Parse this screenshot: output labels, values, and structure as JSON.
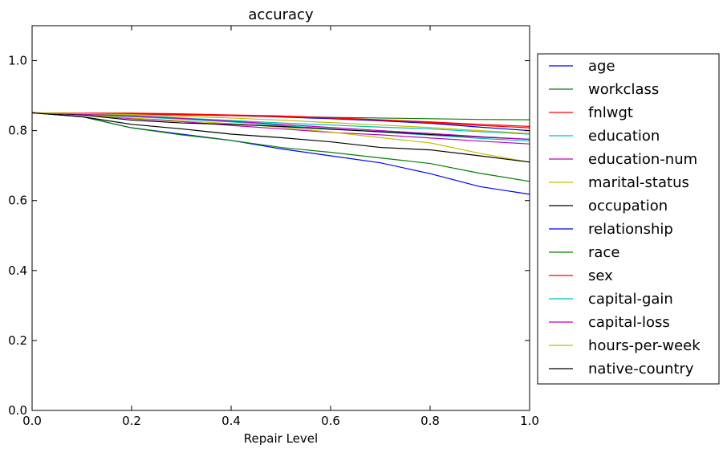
{
  "chart_data": {
    "type": "line",
    "title": "accuracy",
    "xlabel": "Repair Level",
    "ylabel": "",
    "xlim": [
      0.0,
      1.0
    ],
    "ylim": [
      0.0,
      1.1
    ],
    "xticks": [
      "0.0",
      "0.2",
      "0.4",
      "0.6",
      "0.8",
      "1.0"
    ],
    "yticks": [
      "0.0",
      "0.2",
      "0.4",
      "0.6",
      "0.8",
      "1.0"
    ],
    "grid": false,
    "legend_position": "right, outside plot",
    "x": [
      0.0,
      0.1,
      0.2,
      0.3,
      0.4,
      0.5,
      0.6,
      0.7,
      0.8,
      0.9,
      1.0
    ],
    "series": [
      {
        "name": "age",
        "color": "#0000ff",
        "values": [
          0.851,
          0.849,
          0.847,
          0.845,
          0.843,
          0.839,
          0.834,
          0.828,
          0.821,
          0.81,
          0.8
        ]
      },
      {
        "name": "workclass",
        "color": "#008000",
        "values": [
          0.851,
          0.849,
          0.847,
          0.845,
          0.843,
          0.841,
          0.838,
          0.836,
          0.834,
          0.832,
          0.831
        ]
      },
      {
        "name": "fnlwgt",
        "color": "#ff0000",
        "values": [
          0.851,
          0.849,
          0.848,
          0.846,
          0.843,
          0.84,
          0.836,
          0.83,
          0.823,
          0.815,
          0.808
        ]
      },
      {
        "name": "education",
        "color": "#00bfbf",
        "values": [
          0.851,
          0.847,
          0.84,
          0.833,
          0.825,
          0.815,
          0.805,
          0.796,
          0.787,
          0.778,
          0.77
        ]
      },
      {
        "name": "education-num",
        "color": "#bf00bf",
        "values": [
          0.851,
          0.846,
          0.834,
          0.826,
          0.815,
          0.805,
          0.795,
          0.788,
          0.779,
          0.77,
          0.762
        ]
      },
      {
        "name": "marital-status",
        "color": "#bfbf00",
        "values": [
          0.851,
          0.846,
          0.836,
          0.828,
          0.82,
          0.81,
          0.796,
          0.78,
          0.765,
          0.735,
          0.71
        ]
      },
      {
        "name": "occupation",
        "color": "#000000",
        "values": [
          0.851,
          0.845,
          0.83,
          0.822,
          0.818,
          0.812,
          0.804,
          0.797,
          0.789,
          0.782,
          0.775
        ]
      },
      {
        "name": "relationship",
        "color": "#0000ff",
        "values": [
          0.851,
          0.84,
          0.808,
          0.79,
          0.772,
          0.748,
          0.728,
          0.708,
          0.677,
          0.64,
          0.618
        ]
      },
      {
        "name": "race",
        "color": "#008000",
        "values": [
          0.851,
          0.84,
          0.808,
          0.788,
          0.772,
          0.752,
          0.738,
          0.722,
          0.706,
          0.678,
          0.655
        ]
      },
      {
        "name": "sex",
        "color": "#ff0000",
        "values": [
          0.851,
          0.85,
          0.85,
          0.848,
          0.845,
          0.842,
          0.837,
          0.831,
          0.825,
          0.818,
          0.812
        ]
      },
      {
        "name": "capital-gain",
        "color": "#00bfbf",
        "values": [
          0.851,
          0.848,
          0.843,
          0.836,
          0.829,
          0.822,
          0.816,
          0.81,
          0.805,
          0.797,
          0.79
        ]
      },
      {
        "name": "capital-loss",
        "color": "#bf00bf",
        "values": [
          0.851,
          0.847,
          0.842,
          0.835,
          0.827,
          0.818,
          0.809,
          0.8,
          0.792,
          0.783,
          0.775
        ]
      },
      {
        "name": "hours-per-week",
        "color": "#bfbf00",
        "values": [
          0.851,
          0.849,
          0.846,
          0.841,
          0.836,
          0.83,
          0.823,
          0.816,
          0.809,
          0.8,
          0.792
        ]
      },
      {
        "name": "native-country",
        "color": "#000000",
        "values": [
          0.851,
          0.84,
          0.818,
          0.805,
          0.79,
          0.78,
          0.768,
          0.752,
          0.745,
          0.728,
          0.71
        ]
      }
    ]
  }
}
